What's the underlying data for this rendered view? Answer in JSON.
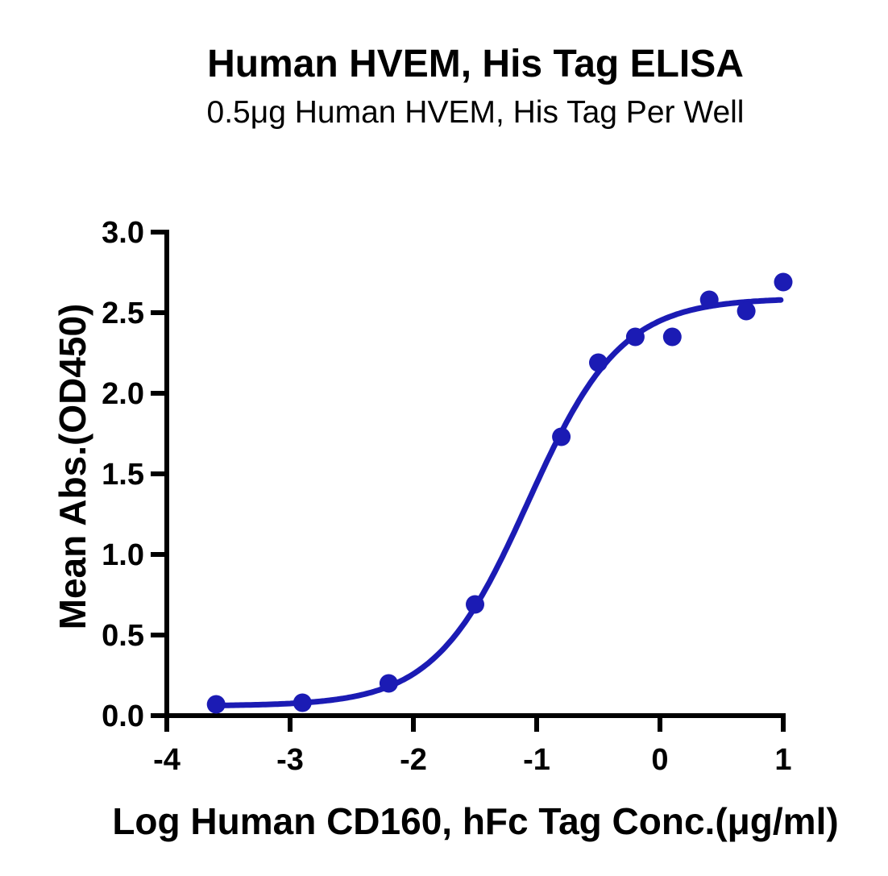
{
  "chart_data": {
    "type": "scatter",
    "title": "Human HVEM, His Tag ELISA",
    "subtitle": "0.5μg Human HVEM, His Tag Per Well",
    "xlabel": "Log Human CD160, hFc Tag Conc.(μg/ml)",
    "ylabel": "Mean Abs.(OD450)",
    "xlim": [
      -4,
      1
    ],
    "ylim": [
      0,
      3
    ],
    "x_ticks": [
      -4,
      -3,
      -2,
      -1,
      0,
      1
    ],
    "x_tick_labels": [
      "-4",
      "-3",
      "-2",
      "-1",
      "0",
      "1"
    ],
    "y_ticks": [
      0,
      0.5,
      1,
      1.5,
      2,
      2.5,
      3
    ],
    "y_tick_labels": [
      "0.0",
      "0.5",
      "1.0",
      "1.5",
      "2.0",
      "2.5",
      "3.0"
    ],
    "grid": false,
    "legend": null,
    "axis_color": "#000000",
    "series": [
      {
        "color": "#1B1BB4",
        "marker": "circle",
        "points": [
          {
            "x": -3.6,
            "y": 0.07
          },
          {
            "x": -2.9,
            "y": 0.08
          },
          {
            "x": -2.2,
            "y": 0.2
          },
          {
            "x": -1.5,
            "y": 0.69
          },
          {
            "x": -0.8,
            "y": 1.73
          },
          {
            "x": -0.5,
            "y": 2.19
          },
          {
            "x": -0.2,
            "y": 2.35
          },
          {
            "x": 0.1,
            "y": 2.35
          },
          {
            "x": 0.4,
            "y": 2.58
          },
          {
            "x": 0.7,
            "y": 2.51
          },
          {
            "x": 1.0,
            "y": 2.69
          }
        ],
        "fit_curve": {
          "model": "4PL",
          "bottom": 0.06,
          "top": 2.59,
          "log_ec50": -1.07,
          "hill_slope": 1.15,
          "x_start": -3.62,
          "x_end": 0.98
        }
      }
    ]
  }
}
